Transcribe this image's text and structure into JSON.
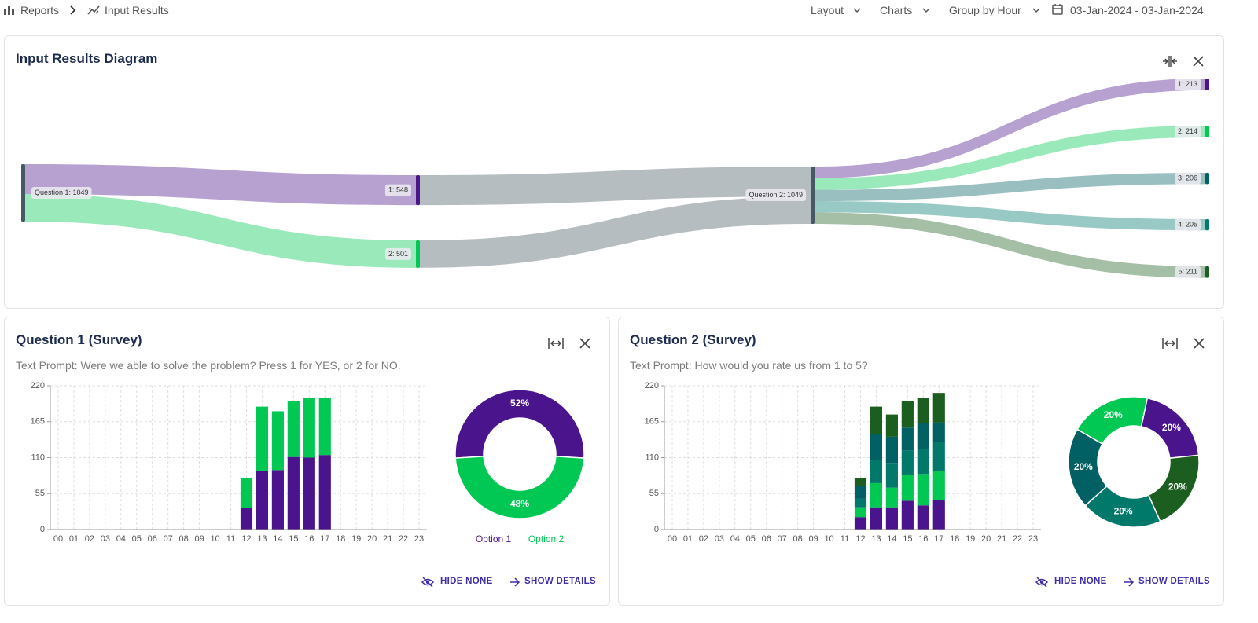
{
  "header": {
    "breadcrumb": [
      "Reports",
      "Input Results"
    ],
    "menus": [
      "Layout",
      "Charts",
      "Group by Hour"
    ],
    "date_range": "03-Jan-2024 - 03-Jan-2024"
  },
  "panels": [
    {
      "title": "Input Results Diagram"
    },
    {
      "title": "Question 1 (Survey)",
      "prompt": "Text Prompt: Were we able to solve the problem? Press 1 for YES, or 2 for NO.",
      "actions": [
        "HIDE NONE",
        "SHOW DETAILS"
      ]
    },
    {
      "title": "Question 2 (Survey)",
      "prompt": "Text Prompt: How would you rate us from 1 to 5?",
      "actions": [
        "HIDE NONE",
        "SHOW DETAILS"
      ]
    }
  ],
  "chart_data": [
    {
      "type": "sankey",
      "nodes": [
        {
          "label": "Question 1: 1049",
          "value": 1049,
          "color": "#455a64"
        },
        {
          "label": "1: 548",
          "value": 548,
          "color": "#4a148c"
        },
        {
          "label": "2: 501",
          "value": 501,
          "color": "#00c853"
        },
        {
          "label": "Question 2: 1049",
          "value": 1049,
          "color": "#455a64"
        },
        {
          "label": "1: 213",
          "value": 213,
          "color": "#4a148c"
        },
        {
          "label": "2: 214",
          "value": 214,
          "color": "#00c853"
        },
        {
          "label": "3: 206",
          "value": 206,
          "color": "#006064"
        },
        {
          "label": "4: 205",
          "value": 205,
          "color": "#00796b"
        },
        {
          "label": "5: 211",
          "value": 211,
          "color": "#1b5e20"
        }
      ],
      "links": [
        {
          "source": 0,
          "target": 1,
          "value": 548
        },
        {
          "source": 0,
          "target": 2,
          "value": 501
        },
        {
          "source": 1,
          "target": 3,
          "value": 548
        },
        {
          "source": 2,
          "target": 3,
          "value": 501
        },
        {
          "source": 3,
          "target": 4,
          "value": 213
        },
        {
          "source": 3,
          "target": 5,
          "value": 214
        },
        {
          "source": 3,
          "target": 6,
          "value": 206
        },
        {
          "source": 3,
          "target": 7,
          "value": 205
        },
        {
          "source": 3,
          "target": 8,
          "value": 211
        }
      ]
    },
    {
      "type": "bar",
      "stacked": true,
      "grid": true,
      "categories": [
        "00",
        "01",
        "02",
        "03",
        "04",
        "05",
        "06",
        "07",
        "08",
        "09",
        "10",
        "11",
        "12",
        "13",
        "14",
        "15",
        "16",
        "17",
        "18",
        "19",
        "20",
        "21",
        "22",
        "23"
      ],
      "series": [
        {
          "name": "Option 1",
          "color": "#4a148c",
          "values": [
            0,
            0,
            0,
            0,
            0,
            0,
            0,
            0,
            0,
            0,
            0,
            0,
            33,
            89,
            91,
            111,
            110,
            114,
            0,
            0,
            0,
            0,
            0,
            0
          ]
        },
        {
          "name": "Option 2",
          "color": "#00c853",
          "values": [
            0,
            0,
            0,
            0,
            0,
            0,
            0,
            0,
            0,
            0,
            0,
            0,
            46,
            99,
            90,
            86,
            92,
            88,
            0,
            0,
            0,
            0,
            0,
            0
          ]
        }
      ],
      "ylim": [
        0,
        220
      ],
      "yticks": [
        0,
        55,
        110,
        165,
        220
      ]
    },
    {
      "type": "pie",
      "categories": [
        "Option 1",
        "Option 2"
      ],
      "values": [
        52,
        48
      ],
      "value_labels": [
        "52%",
        "48%"
      ],
      "colors": [
        "#4a148c",
        "#00c853"
      ],
      "legend": "bottom"
    },
    {
      "type": "bar",
      "stacked": true,
      "grid": true,
      "categories": [
        "00",
        "01",
        "02",
        "03",
        "04",
        "05",
        "06",
        "07",
        "08",
        "09",
        "10",
        "11",
        "12",
        "13",
        "14",
        "15",
        "16",
        "17",
        "18",
        "19",
        "20",
        "21",
        "22",
        "23"
      ],
      "series": [
        {
          "name": "1",
          "color": "#4a148c",
          "values": [
            0,
            0,
            0,
            0,
            0,
            0,
            0,
            0,
            0,
            0,
            0,
            0,
            19,
            34,
            34,
            44,
            37,
            45,
            0,
            0,
            0,
            0,
            0,
            0
          ]
        },
        {
          "name": "2",
          "color": "#00c853",
          "values": [
            0,
            0,
            0,
            0,
            0,
            0,
            0,
            0,
            0,
            0,
            0,
            0,
            15,
            37,
            30,
            40,
            48,
            44,
            0,
            0,
            0,
            0,
            0,
            0
          ]
        },
        {
          "name": "3",
          "color": "#00796b",
          "values": [
            0,
            0,
            0,
            0,
            0,
            0,
            0,
            0,
            0,
            0,
            0,
            0,
            13,
            35,
            38,
            37,
            38,
            45,
            0,
            0,
            0,
            0,
            0,
            0
          ]
        },
        {
          "name": "4",
          "color": "#006064",
          "values": [
            0,
            0,
            0,
            0,
            0,
            0,
            0,
            0,
            0,
            0,
            0,
            0,
            20,
            40,
            40,
            35,
            40,
            30,
            0,
            0,
            0,
            0,
            0,
            0
          ]
        },
        {
          "name": "5",
          "color": "#1b5e20",
          "values": [
            0,
            0,
            0,
            0,
            0,
            0,
            0,
            0,
            0,
            0,
            0,
            0,
            12,
            42,
            34,
            40,
            38,
            45,
            0,
            0,
            0,
            0,
            0,
            0
          ]
        }
      ],
      "ylim": [
        0,
        220
      ],
      "yticks": [
        0,
        55,
        110,
        165,
        220
      ]
    },
    {
      "type": "pie",
      "values": [
        20,
        20,
        20,
        20,
        20
      ],
      "value_labels": [
        "20%",
        "20%",
        "20%",
        "20%",
        "20%"
      ],
      "colors": [
        "#4a148c",
        "#1b5e20",
        "#00796b",
        "#006064",
        "#00c853"
      ]
    }
  ]
}
